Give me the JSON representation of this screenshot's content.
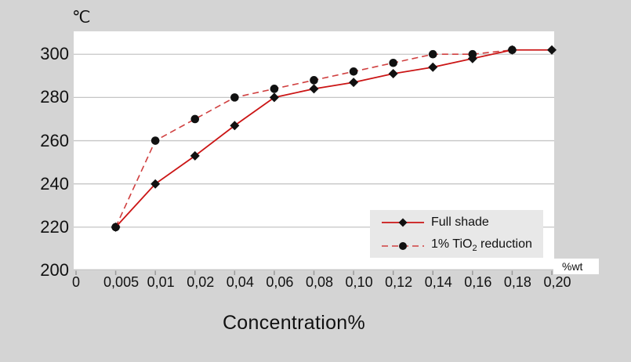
{
  "colors": {
    "page_bg": "#d4d4d4",
    "plot_bg": "#ffffff",
    "grid": "#c6c6c6",
    "tick": "#999999",
    "text": "#111111",
    "legend_bg": "#e8e8e8",
    "unit_box_bg": "#ffffff",
    "marker": "#111111",
    "series_solid": "#cb1515",
    "series_dashed": "#d04040"
  },
  "chart_data": {
    "type": "line",
    "title": "",
    "y_axis_label": "℃",
    "x_axis_label": "Concentration%",
    "x_unit_label": "%wt",
    "grid": true,
    "legend_position": "inside-bottom-right",
    "ylim": [
      200,
      310.6
    ],
    "yticks": [
      300,
      280,
      260,
      240,
      220,
      200
    ],
    "x_categories": [
      "0",
      "0,005",
      "0,01",
      "0,02",
      "0,04",
      "0,06",
      "0,08",
      "0,10",
      "0,12",
      "0,14",
      "0,16",
      "0,18",
      "0,20"
    ],
    "series": [
      {
        "name": "Full shade",
        "line_style": "solid",
        "marker": "diamond",
        "color": "#cb1515",
        "x": [
          "0,005",
          "0,01",
          "0,02",
          "0,04",
          "0,06",
          "0,08",
          "0,10",
          "0,12",
          "0,14",
          "0,16",
          "0,18",
          "0,20"
        ],
        "values": [
          220,
          240,
          253,
          267,
          280,
          284,
          287,
          291,
          294,
          298,
          302,
          302
        ]
      },
      {
        "name": "1% TiO₂ reduction",
        "line_style": "dashed",
        "marker": "circle",
        "color": "#d04040",
        "x": [
          "0,005",
          "0,01",
          "0,02",
          "0,04",
          "0,06",
          "0,08",
          "0,10",
          "0,12",
          "0,14",
          "0,16",
          "0,18"
        ],
        "values": [
          220,
          260,
          270,
          280,
          284,
          288,
          292,
          296,
          300,
          300,
          302
        ]
      }
    ]
  },
  "legend": {
    "items": [
      {
        "pre": "Full shade",
        "sub": "",
        "post": ""
      },
      {
        "pre": "1% TiO",
        "sub": "2",
        "post": " reduction"
      }
    ]
  }
}
